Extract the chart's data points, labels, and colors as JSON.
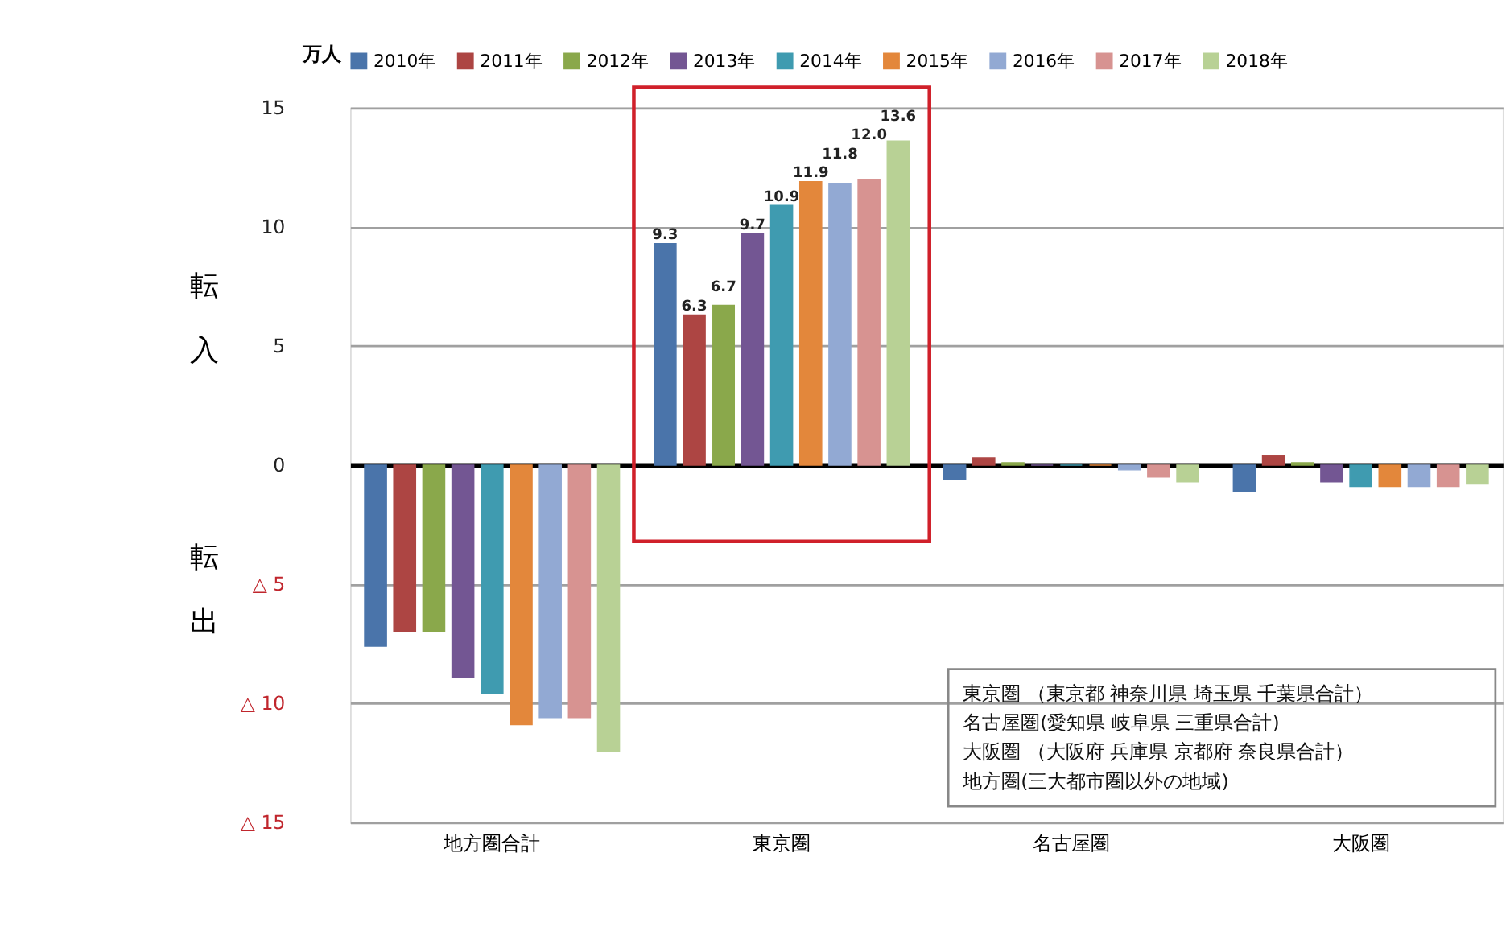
{
  "chart_data": {
    "type": "bar",
    "ylabel": "万人",
    "categories": [
      "地方圏合計",
      "東京圏",
      "名古屋圏",
      "大阪圏"
    ],
    "series": [
      {
        "name": "2010年",
        "color": "#4a74aa",
        "values": [
          -7.6,
          9.3,
          -0.6,
          -1.1
        ],
        "value_labels": [
          null,
          "9.3",
          null,
          null
        ]
      },
      {
        "name": "2011年",
        "color": "#ad4543",
        "values": [
          -7.0,
          6.3,
          0.3,
          0.4
        ],
        "value_labels": [
          null,
          "6.3",
          null,
          null
        ]
      },
      {
        "name": "2012年",
        "color": "#8aa84b",
        "values": [
          -7.0,
          6.7,
          0.1,
          0.1
        ],
        "value_labels": [
          null,
          "6.7",
          null,
          null
        ]
      },
      {
        "name": "2013年",
        "color": "#735693",
        "values": [
          -8.9,
          9.7,
          0,
          -0.7
        ],
        "value_labels": [
          null,
          "9.7",
          null,
          null
        ]
      },
      {
        "name": "2014年",
        "color": "#3f9bb0",
        "values": [
          -9.6,
          10.9,
          0,
          -0.9
        ],
        "value_labels": [
          null,
          "10.9",
          null,
          null
        ]
      },
      {
        "name": "2015年",
        "color": "#e3873b",
        "values": [
          -10.9,
          11.9,
          0,
          -0.9
        ],
        "value_labels": [
          null,
          "11.9",
          null,
          null
        ]
      },
      {
        "name": "2016年",
        "color": "#92a9d3",
        "values": [
          -10.6,
          11.8,
          -0.2,
          -0.9
        ],
        "value_labels": [
          null,
          "11.8",
          null,
          null
        ]
      },
      {
        "name": "2017年",
        "color": "#d79391",
        "values": [
          -10.6,
          12.0,
          -0.5,
          -0.9
        ],
        "value_labels": [
          null,
          "12.0",
          null,
          null
        ]
      },
      {
        "name": "2018年",
        "color": "#b8d195",
        "values": [
          -12.0,
          13.6,
          -0.7,
          -0.8
        ],
        "value_labels": [
          null,
          "13.6",
          null,
          null
        ]
      }
    ],
    "ylim": [
      -15,
      15
    ],
    "yticks": [
      {
        "value": -15,
        "label": "△ 15"
      },
      {
        "value": -10,
        "label": "△ 10"
      },
      {
        "value": -5,
        "label": "△ 5"
      },
      0,
      5,
      10,
      15
    ],
    "grid": "y",
    "legend": "top",
    "annotations": [
      "転入",
      "転出",
      "東京圏 （東京都 神奈川県 埼玉県 千葉県合計）",
      "名古屋圏(愛知県 岐阜県 三重県合計)",
      "大阪圏 （大阪府 兵庫県 京都府 奈良県合計）",
      "地方圏(三大都市圏以外の地域)"
    ]
  }
}
